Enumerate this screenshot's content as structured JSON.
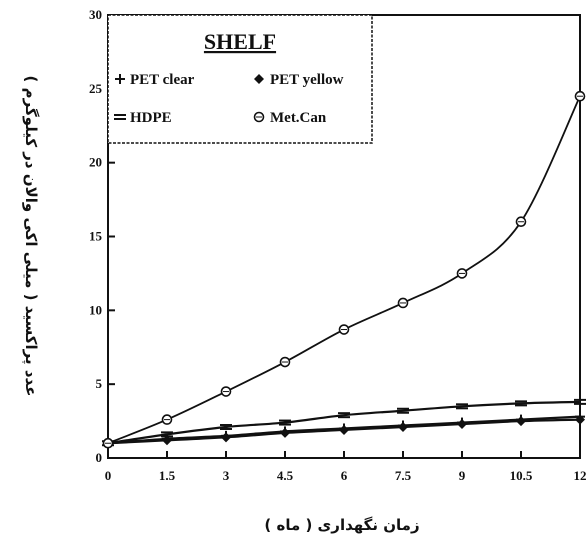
{
  "chart_data": {
    "type": "line",
    "title": "SHELF",
    "xlabel": "زمان نگهداری ( ماه )",
    "ylabel": "عدد پراکسید ( میلی اکی والان در کیلوگرم )",
    "x": [
      0,
      1.5,
      3,
      4.5,
      6,
      7.5,
      9,
      10.5,
      12
    ],
    "x_tick_labels": [
      "0",
      "1.5",
      "3",
      "4.5",
      "6",
      "7.5",
      "9",
      "10.5",
      "12"
    ],
    "xlim": [
      0,
      12
    ],
    "ylim": [
      0,
      30
    ],
    "y_ticks": [
      0,
      5,
      10,
      15,
      20,
      25,
      30
    ],
    "y_tick_labels": [
      "0",
      "5",
      "10",
      "15",
      "20",
      "25",
      "30"
    ],
    "grid": false,
    "legend_position": "top-left",
    "series": [
      {
        "name": "PET clear",
        "marker": "plus",
        "values": [
          1.0,
          1.3,
          1.5,
          1.8,
          2.0,
          2.2,
          2.4,
          2.6,
          2.8
        ]
      },
      {
        "name": "PET yellow",
        "marker": "diamond",
        "values": [
          1.0,
          1.2,
          1.4,
          1.7,
          1.9,
          2.1,
          2.3,
          2.5,
          2.6
        ]
      },
      {
        "name": "HDPE",
        "marker": "minus",
        "values": [
          1.0,
          1.6,
          2.1,
          2.4,
          2.9,
          3.2,
          3.5,
          3.7,
          3.8
        ]
      },
      {
        "name": "Met.Can",
        "marker": "circle",
        "values": [
          1.0,
          2.6,
          4.5,
          6.5,
          8.7,
          10.5,
          12.5,
          16.0,
          24.5
        ]
      }
    ]
  }
}
